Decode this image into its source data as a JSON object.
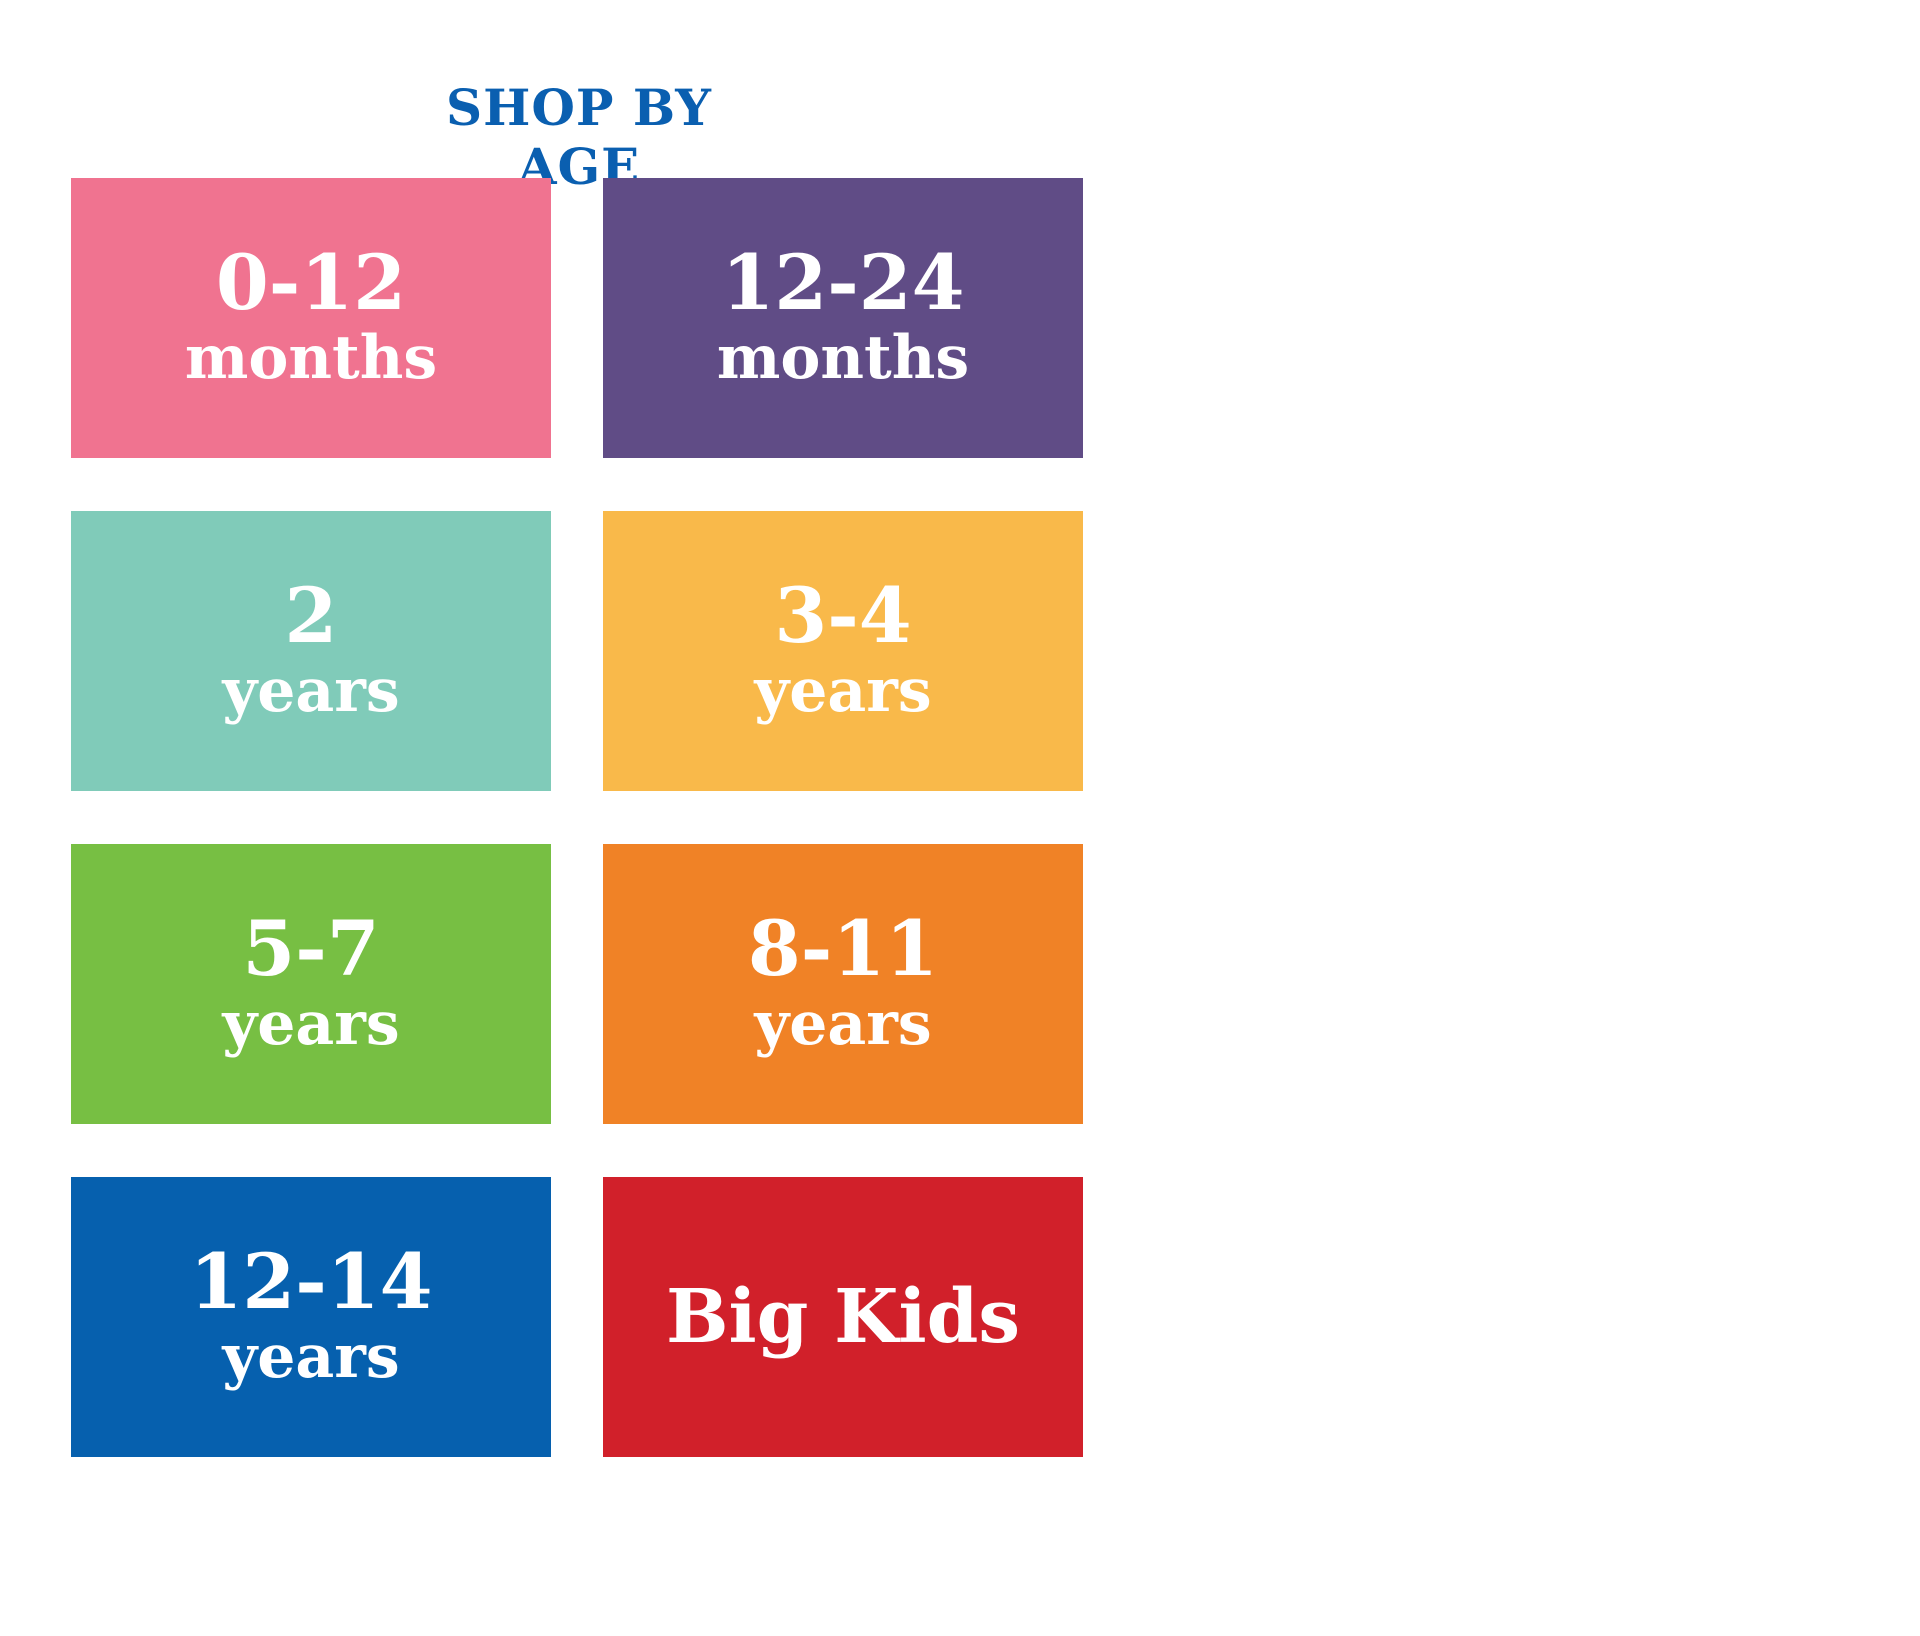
{
  "header": {
    "title": "SHOP BY AGE"
  },
  "tiles": [
    {
      "num": "0-12",
      "unit": "months",
      "color": "#f07390"
    },
    {
      "num": "12-24",
      "unit": "months",
      "color": "#604c86"
    },
    {
      "num": "2",
      "unit": "years",
      "color": "#80cbb9"
    },
    {
      "num": "3-4",
      "unit": "years",
      "color": "#f9b94a"
    },
    {
      "num": "5-7",
      "unit": "years",
      "color": "#77bf43"
    },
    {
      "num": "8-11",
      "unit": "years",
      "color": "#f08226"
    },
    {
      "num": "12-14",
      "unit": "years",
      "color": "#0660ae"
    },
    {
      "label": "Big Kids",
      "color": "#d1202a"
    }
  ]
}
